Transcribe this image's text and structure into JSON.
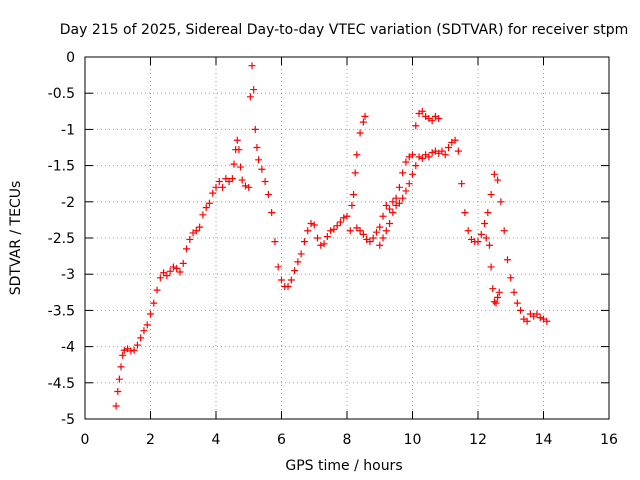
{
  "chart_data": {
    "type": "scatter",
    "title": "Day 215 of 2025, Sidereal Day-to-day VTEC variation (SDTVAR) for receiver stpm",
    "xlabel": "GPS time / hours",
    "ylabel": "SDTVAR / TECUs",
    "xlim": [
      0,
      16
    ],
    "ylim": [
      -5,
      0
    ],
    "xticks": [
      0,
      2,
      4,
      6,
      8,
      10,
      12,
      14,
      16
    ],
    "yticks": [
      0,
      -0.5,
      -1,
      -1.5,
      -2,
      -2.5,
      -3,
      -3.5,
      -4,
      -4.5,
      -5
    ],
    "xtick_labels": [
      "0",
      "2",
      "4",
      "6",
      "8",
      "10",
      "12",
      "14",
      "16"
    ],
    "ytick_labels": [
      "0",
      "-0.5",
      "-1",
      "-1.5",
      "-2",
      "-2.5",
      "-3",
      "-3.5",
      "-4",
      "-4.5",
      "-5"
    ],
    "grid": true,
    "marker": "+",
    "color": "#ff0000",
    "series": [
      {
        "name": "stpm",
        "points": [
          [
            0.95,
            -4.82
          ],
          [
            1.0,
            -4.62
          ],
          [
            1.05,
            -4.45
          ],
          [
            1.1,
            -4.28
          ],
          [
            1.15,
            -4.12
          ],
          [
            1.2,
            -4.05
          ],
          [
            1.3,
            -4.03
          ],
          [
            1.4,
            -4.06
          ],
          [
            1.5,
            -4.05
          ],
          [
            1.6,
            -3.98
          ],
          [
            1.7,
            -3.88
          ],
          [
            1.8,
            -3.78
          ],
          [
            1.9,
            -3.7
          ],
          [
            2.0,
            -3.55
          ],
          [
            2.1,
            -3.4
          ],
          [
            2.2,
            -3.22
          ],
          [
            2.3,
            -3.05
          ],
          [
            2.4,
            -2.98
          ],
          [
            2.5,
            -3.02
          ],
          [
            2.6,
            -2.96
          ],
          [
            2.7,
            -2.9
          ],
          [
            2.8,
            -2.92
          ],
          [
            2.9,
            -2.97
          ],
          [
            3.0,
            -2.85
          ],
          [
            3.1,
            -2.65
          ],
          [
            3.2,
            -2.52
          ],
          [
            3.3,
            -2.43
          ],
          [
            3.4,
            -2.4
          ],
          [
            3.5,
            -2.35
          ],
          [
            3.6,
            -2.18
          ],
          [
            3.7,
            -2.08
          ],
          [
            3.8,
            -2.02
          ],
          [
            3.9,
            -1.88
          ],
          [
            4.0,
            -1.8
          ],
          [
            4.1,
            -1.72
          ],
          [
            4.2,
            -1.8
          ],
          [
            4.3,
            -1.68
          ],
          [
            4.4,
            -1.72
          ],
          [
            4.5,
            -1.68
          ],
          [
            4.55,
            -1.48
          ],
          [
            4.6,
            -1.28
          ],
          [
            4.65,
            -1.15
          ],
          [
            4.7,
            -1.28
          ],
          [
            4.75,
            -1.52
          ],
          [
            4.8,
            -1.7
          ],
          [
            4.9,
            -1.78
          ],
          [
            5.0,
            -1.8
          ],
          [
            5.05,
            -0.55
          ],
          [
            5.1,
            -0.12
          ],
          [
            5.15,
            -0.45
          ],
          [
            5.2,
            -1.0
          ],
          [
            5.25,
            -1.25
          ],
          [
            5.3,
            -1.42
          ],
          [
            5.4,
            -1.55
          ],
          [
            5.5,
            -1.72
          ],
          [
            5.6,
            -1.9
          ],
          [
            5.7,
            -2.15
          ],
          [
            5.8,
            -2.55
          ],
          [
            5.9,
            -2.9
          ],
          [
            6.0,
            -3.08
          ],
          [
            6.1,
            -3.17
          ],
          [
            6.2,
            -3.17
          ],
          [
            6.3,
            -3.08
          ],
          [
            6.4,
            -2.95
          ],
          [
            6.5,
            -2.83
          ],
          [
            6.6,
            -2.72
          ],
          [
            6.7,
            -2.55
          ],
          [
            6.8,
            -2.4
          ],
          [
            6.9,
            -2.3
          ],
          [
            7.0,
            -2.32
          ],
          [
            7.1,
            -2.5
          ],
          [
            7.2,
            -2.6
          ],
          [
            7.3,
            -2.58
          ],
          [
            7.4,
            -2.48
          ],
          [
            7.5,
            -2.4
          ],
          [
            7.6,
            -2.38
          ],
          [
            7.7,
            -2.33
          ],
          [
            7.8,
            -2.28
          ],
          [
            7.9,
            -2.22
          ],
          [
            8.0,
            -2.2
          ],
          [
            8.1,
            -2.4
          ],
          [
            8.15,
            -2.05
          ],
          [
            8.2,
            -1.9
          ],
          [
            8.25,
            -1.6
          ],
          [
            8.3,
            -1.35
          ],
          [
            8.4,
            -1.05
          ],
          [
            8.5,
            -0.9
          ],
          [
            8.55,
            -0.82
          ],
          [
            8.3,
            -2.36
          ],
          [
            8.4,
            -2.4
          ],
          [
            8.5,
            -2.45
          ],
          [
            8.6,
            -2.52
          ],
          [
            8.7,
            -2.55
          ],
          [
            8.8,
            -2.5
          ],
          [
            8.9,
            -2.42
          ],
          [
            9.0,
            -2.35
          ],
          [
            9.1,
            -2.2
          ],
          [
            9.2,
            -2.05
          ],
          [
            9.3,
            -2.1
          ],
          [
            9.4,
            -2.0
          ],
          [
            9.5,
            -2.05
          ],
          [
            9.6,
            -2.02
          ],
          [
            9.7,
            -1.95
          ],
          [
            9.8,
            -1.85
          ],
          [
            9.9,
            -1.75
          ],
          [
            10.0,
            -1.62
          ],
          [
            10.1,
            -1.5
          ],
          [
            10.2,
            -1.38
          ],
          [
            10.3,
            -1.4
          ],
          [
            10.4,
            -1.35
          ],
          [
            10.5,
            -1.38
          ],
          [
            10.6,
            -1.32
          ],
          [
            10.7,
            -1.3
          ],
          [
            10.8,
            -1.33
          ],
          [
            10.9,
            -1.3
          ],
          [
            11.0,
            -1.35
          ],
          [
            11.1,
            -1.25
          ],
          [
            11.2,
            -1.18
          ],
          [
            11.3,
            -1.15
          ],
          [
            11.4,
            -1.3
          ],
          [
            11.5,
            -1.75
          ],
          [
            11.6,
            -2.15
          ],
          [
            11.7,
            -2.4
          ],
          [
            11.8,
            -2.52
          ],
          [
            11.9,
            -2.55
          ],
          [
            12.0,
            -2.55
          ],
          [
            12.1,
            -2.45
          ],
          [
            12.2,
            -2.3
          ],
          [
            12.25,
            -2.5
          ],
          [
            12.3,
            -2.15
          ],
          [
            12.4,
            -1.9
          ],
          [
            12.5,
            -1.62
          ],
          [
            12.6,
            -1.7
          ],
          [
            12.7,
            -2.0
          ],
          [
            12.8,
            -2.4
          ],
          [
            12.9,
            -2.8
          ],
          [
            13.0,
            -3.05
          ],
          [
            13.1,
            -3.25
          ],
          [
            13.2,
            -3.4
          ],
          [
            13.3,
            -3.5
          ],
          [
            13.4,
            -3.62
          ],
          [
            13.5,
            -3.65
          ],
          [
            13.6,
            -3.55
          ],
          [
            13.7,
            -3.58
          ],
          [
            13.8,
            -3.55
          ],
          [
            13.9,
            -3.6
          ],
          [
            14.0,
            -3.62
          ],
          [
            14.1,
            -3.65
          ],
          [
            9.0,
            -2.6
          ],
          [
            9.1,
            -2.5
          ],
          [
            9.2,
            -2.4
          ],
          [
            9.3,
            -2.3
          ],
          [
            9.4,
            -2.15
          ],
          [
            9.5,
            -1.95
          ],
          [
            9.6,
            -1.8
          ],
          [
            9.7,
            -1.6
          ],
          [
            9.8,
            -1.45
          ],
          [
            9.9,
            -1.38
          ],
          [
            10.0,
            -1.35
          ],
          [
            10.1,
            -0.95
          ],
          [
            10.2,
            -0.78
          ],
          [
            10.3,
            -0.75
          ],
          [
            10.4,
            -0.82
          ],
          [
            10.5,
            -0.85
          ],
          [
            10.6,
            -0.88
          ],
          [
            10.7,
            -0.82
          ],
          [
            10.8,
            -0.85
          ],
          [
            12.35,
            -2.6
          ],
          [
            12.4,
            -2.9
          ],
          [
            12.45,
            -3.2
          ],
          [
            12.5,
            -3.38
          ],
          [
            12.55,
            -3.4
          ],
          [
            12.6,
            -3.32
          ],
          [
            12.65,
            -3.25
          ]
        ]
      }
    ]
  }
}
